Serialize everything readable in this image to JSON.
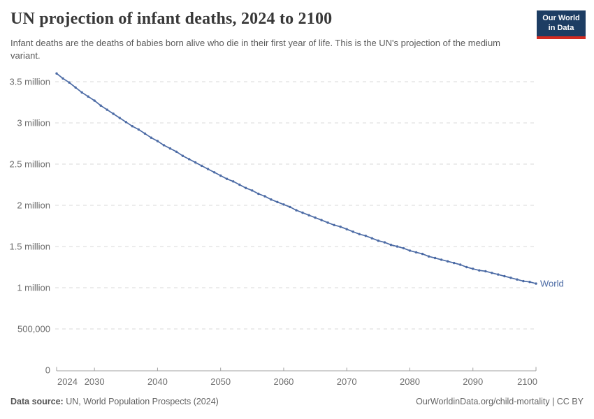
{
  "header": {
    "title": "UN projection of infant deaths, 2024 to 2100",
    "subtitle": "Infant deaths are the deaths of babies born alive who die in their first year of life. This is the UN's projection of the medium variant.",
    "logo": {
      "line1": "Our World",
      "line2": "in Data",
      "bg_color": "#1d3d63",
      "bar_color": "#d42b21"
    }
  },
  "footer": {
    "source_label": "Data source:",
    "source_text": " UN, World Population Prospects (2024)",
    "credit": "OurWorldinData.org/child-mortality | CC BY"
  },
  "chart_data": {
    "type": "line",
    "title": "UN projection of infant deaths, 2024 to 2100",
    "xlabel": "",
    "ylabel": "",
    "xlim": [
      2024,
      2100
    ],
    "ylim": [
      0,
      3.6
    ],
    "grid": "horizontal dashed",
    "legend_position": "end-of-line label",
    "x_ticks": [
      {
        "value": 2024,
        "label": "2024"
      },
      {
        "value": 2030,
        "label": "2030"
      },
      {
        "value": 2040,
        "label": "2040"
      },
      {
        "value": 2050,
        "label": "2050"
      },
      {
        "value": 2060,
        "label": "2060"
      },
      {
        "value": 2070,
        "label": "2070"
      },
      {
        "value": 2080,
        "label": "2080"
      },
      {
        "value": 2090,
        "label": "2090"
      },
      {
        "value": 2100,
        "label": "2100"
      }
    ],
    "y_ticks": [
      {
        "value": 0,
        "label": "0"
      },
      {
        "value": 0.5,
        "label": "500,000"
      },
      {
        "value": 1,
        "label": "1 million"
      },
      {
        "value": 1.5,
        "label": "1.5 million"
      },
      {
        "value": 2,
        "label": "2 million"
      },
      {
        "value": 2.5,
        "label": "2.5 million"
      },
      {
        "value": 3,
        "label": "3 million"
      },
      {
        "value": 3.5,
        "label": "3.5 million"
      }
    ],
    "years": {
      "start": 2024,
      "end": 2100,
      "step": 1
    },
    "series": [
      {
        "name": "World",
        "color": "#4c6ba5",
        "unit": "infant deaths (millions)",
        "values_millions": [
          3.6,
          3.54,
          3.49,
          3.43,
          3.37,
          3.32,
          3.27,
          3.21,
          3.16,
          3.11,
          3.06,
          3.01,
          2.96,
          2.92,
          2.87,
          2.82,
          2.78,
          2.73,
          2.69,
          2.65,
          2.6,
          2.56,
          2.52,
          2.48,
          2.44,
          2.4,
          2.36,
          2.32,
          2.29,
          2.25,
          2.21,
          2.18,
          2.14,
          2.11,
          2.07,
          2.04,
          2.01,
          1.98,
          1.94,
          1.91,
          1.88,
          1.85,
          1.82,
          1.79,
          1.76,
          1.74,
          1.71,
          1.68,
          1.65,
          1.63,
          1.6,
          1.57,
          1.55,
          1.52,
          1.5,
          1.48,
          1.45,
          1.43,
          1.41,
          1.38,
          1.36,
          1.34,
          1.32,
          1.3,
          1.28,
          1.25,
          1.23,
          1.21,
          1.2,
          1.18,
          1.16,
          1.14,
          1.12,
          1.1,
          1.08,
          1.07,
          1.05
        ]
      }
    ],
    "colors": {
      "gridline": "#dadada",
      "axis": "#a1a1a1",
      "tick_label": "#6d6d6d"
    }
  }
}
